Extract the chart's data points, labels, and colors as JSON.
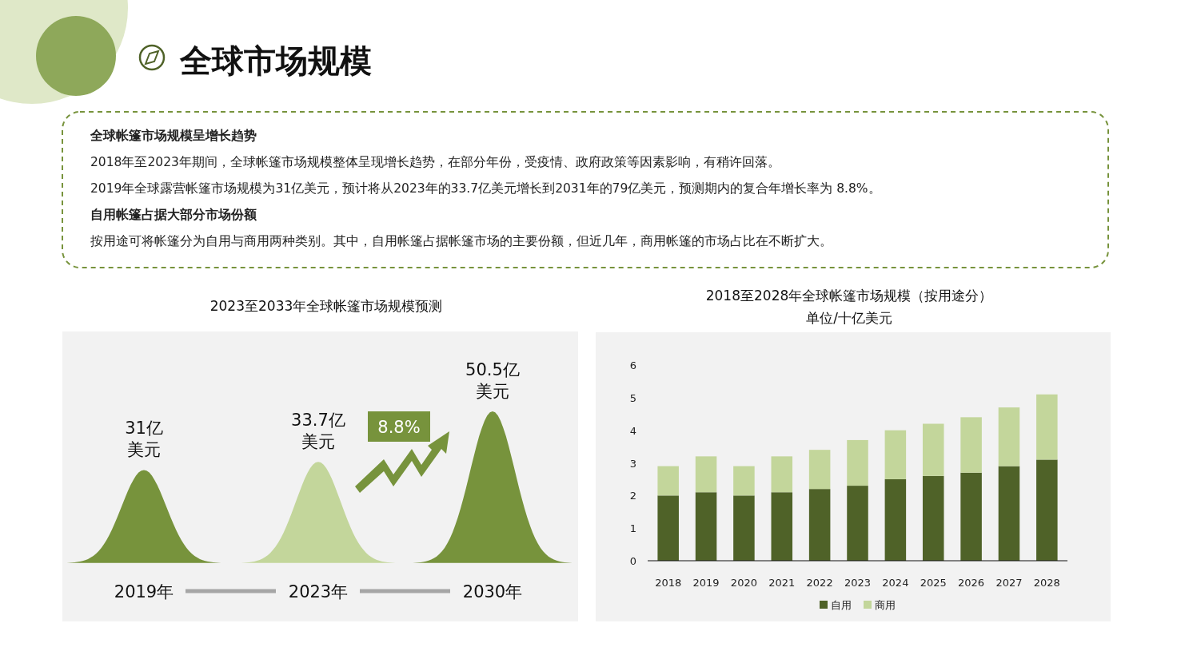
{
  "chart_data": [
    {
      "type": "other",
      "title": "全球市场规模",
      "annotations": [
        "全球帐篷市场规模呈增长趋势",
        "2018年至2023年期间，全球帐篷市场规模整体呈现增长趋势，在部分年份，受疫情、政府政策等因素影响，有稍许回落。",
        "2019年全球露营帐篷市场规模为31亿美元，预计将从2023年的33.7亿美元增长到2031年的79亿美元，预测期内的复合年增长率为 8.8%。",
        "自用帐篷占据大部分市场份额",
        "按用途可将帐篷分为自用与商用两种类别。其中，自用帐篷占据帐篷市场的主要份额，但近几年，商用帐篷的市场占比在不断扩大。"
      ]
    },
    {
      "type": "other",
      "title": "2023至2033年全球帐篷市场规模预测",
      "categories": [
        "2019年",
        "2023年",
        "2030年"
      ],
      "values": [
        31,
        33.7,
        50.5
      ],
      "value_labels": [
        "31亿美元",
        "33.7亿美元",
        "50.5亿美元"
      ],
      "annotations": [
        "8.8%"
      ]
    },
    {
      "type": "bar",
      "title": "2018至2028年全球帐篷市场规模（按用途分）",
      "subtitle": "单位/十亿美元",
      "categories": [
        "2018",
        "2019",
        "2020",
        "2021",
        "2022",
        "2023",
        "2024",
        "2025",
        "2026",
        "2027",
        "2028"
      ],
      "stacked": true,
      "ylim": [
        0,
        6
      ],
      "yticks": [
        0,
        1,
        2,
        3,
        4,
        5,
        6
      ],
      "legend": "bottom",
      "series": [
        {
          "name": "自用",
          "color": "#4f6228",
          "values": [
            2.0,
            2.1,
            2.0,
            2.1,
            2.2,
            2.3,
            2.5,
            2.6,
            2.7,
            2.9,
            3.1
          ]
        },
        {
          "name": "商用",
          "color": "#c3d69b",
          "values": [
            0.9,
            1.1,
            0.9,
            1.1,
            1.2,
            1.4,
            1.5,
            1.6,
            1.7,
            1.8,
            2.0
          ]
        }
      ]
    }
  ]
}
